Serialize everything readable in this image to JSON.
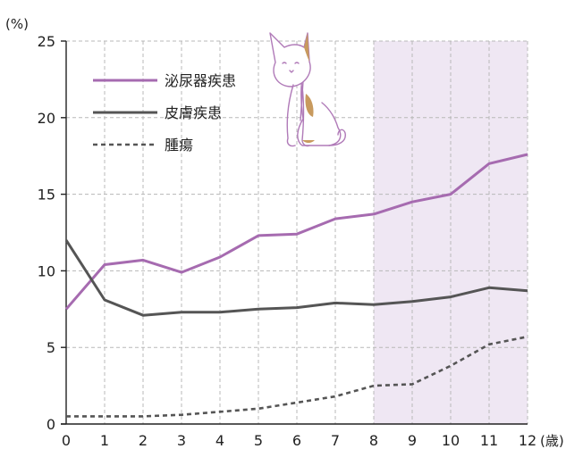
{
  "chart_data": {
    "type": "line",
    "y_unit_label": "(%)",
    "x_unit_label": "(歳)",
    "x": [
      0,
      1,
      2,
      3,
      4,
      5,
      6,
      7,
      8,
      9,
      10,
      11,
      12
    ],
    "ylim": [
      0,
      25
    ],
    "yticks": [
      0,
      5,
      10,
      15,
      20,
      25
    ],
    "grid": true,
    "legend_placement": "top-left",
    "highlight_range": [
      8,
      12
    ],
    "series": [
      {
        "name": "泌尿器疾患",
        "color": "#a66bb0",
        "style": "solid",
        "values": [
          7.5,
          10.4,
          10.7,
          9.9,
          10.9,
          12.3,
          12.4,
          13.4,
          13.7,
          14.5,
          15.0,
          17.0,
          17.6
        ]
      },
      {
        "name": "皮膚疾患",
        "color": "#555555",
        "style": "solid",
        "values": [
          12.0,
          8.1,
          7.1,
          7.3,
          7.3,
          7.5,
          7.6,
          7.9,
          7.8,
          8.0,
          8.3,
          8.9,
          8.7
        ]
      },
      {
        "name": "腫瘍",
        "color": "#555555",
        "style": "dashed",
        "values": [
          0.5,
          0.5,
          0.5,
          0.6,
          0.8,
          1.0,
          1.4,
          1.8,
          2.5,
          2.6,
          3.8,
          5.2,
          5.7
        ]
      }
    ]
  },
  "illustration": {
    "icon": "cat-icon",
    "colors": {
      "outline": "#b07ab8",
      "patch": "#c89a5e"
    }
  }
}
